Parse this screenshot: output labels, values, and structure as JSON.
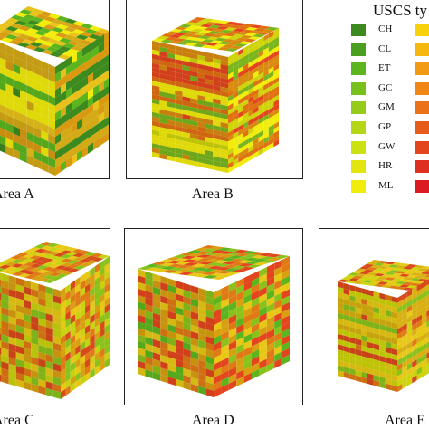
{
  "legend": {
    "title": "USCS ty",
    "items": [
      {
        "label": "CH",
        "color": "#3d8a1f"
      },
      {
        "label": "CL",
        "color": "#4aa01e"
      },
      {
        "label": "ET",
        "color": "#5cb51d"
      },
      {
        "label": "GC",
        "color": "#78c01c"
      },
      {
        "label": "GM",
        "color": "#95cb1a"
      },
      {
        "label": "GP",
        "color": "#b4d616"
      },
      {
        "label": "GW",
        "color": "#cde012"
      },
      {
        "label": "HR",
        "color": "#e3e60e"
      },
      {
        "label": "ML",
        "color": "#f2ec0a"
      }
    ],
    "items_right": [
      {
        "label": "",
        "color": "#f7d10c"
      },
      {
        "label": "",
        "color": "#f6b70f"
      },
      {
        "label": "",
        "color": "#f29a13"
      },
      {
        "label": "",
        "color": "#ef8616"
      },
      {
        "label": "",
        "color": "#eb7218"
      },
      {
        "label": "",
        "color": "#e75c1b"
      },
      {
        "label": "",
        "color": "#e3461d"
      },
      {
        "label": "",
        "color": "#df2f20"
      },
      {
        "label": "",
        "color": "#db1a22"
      }
    ]
  },
  "panels": [
    {
      "id": "A",
      "caption": "Area A",
      "palette": [
        "#f2ec0a",
        "#e8c21a",
        "#d99a12",
        "#d4aa16",
        "#5cb51d",
        "#3d8a1f"
      ],
      "dominant": "yellow-green"
    },
    {
      "id": "B",
      "caption": "Area B",
      "palette": [
        "#d98a0e",
        "#e07010",
        "#cfd40a",
        "#f2ec0a",
        "#e3461d",
        "#7ab51c"
      ],
      "dominant": "orange-yellow stripes"
    },
    {
      "id": "C",
      "caption": "Area C",
      "palette": [
        "#e8c814",
        "#e07a14",
        "#d94a1a",
        "#8ac21a",
        "#c9d20e",
        "#d8a010"
      ],
      "dominant": "mixed"
    },
    {
      "id": "D",
      "caption": "Area D",
      "palette": [
        "#e8c814",
        "#e07a14",
        "#e3461d",
        "#8ac21a",
        "#5cb51d",
        "#d8a010"
      ],
      "dominant": "mixed"
    },
    {
      "id": "E",
      "caption": "Area E",
      "palette": [
        "#e8c814",
        "#d8b010",
        "#e07a14",
        "#8ac21a",
        "#d94a1a",
        "#cfd40a"
      ],
      "dominant": "yellow-orange"
    }
  ]
}
